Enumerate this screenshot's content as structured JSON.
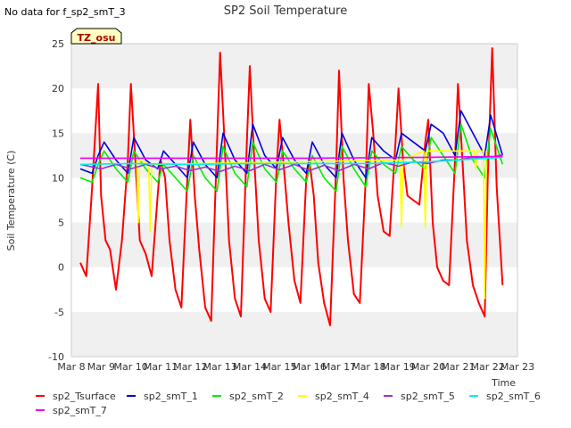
{
  "no_data_note": "No data for f_sp2_smT_3",
  "badge": "TZ_osu",
  "colors": {
    "sp2_Tsurface": "#ff0000",
    "sp2_smT_1": "#0000dd",
    "sp2_smT_2": "#00ee00",
    "sp2_smT_4": "#ffff00",
    "sp2_smT_5": "#9933cc",
    "sp2_smT_6": "#00eeee",
    "sp2_smT_7": "#ee00ee",
    "band": "#f0f0f0",
    "badge_bg": "#ffffc0",
    "badge_text": "#aa0000"
  },
  "chart_data": {
    "type": "line",
    "title": "SP2 Soil Temperature",
    "xlabel": "Time",
    "ylabel": "Soil Temperature (C)",
    "xlim": [
      8,
      23
    ],
    "ylim": [
      -10,
      25
    ],
    "x_tick_values": [
      8,
      9,
      10,
      11,
      12,
      13,
      14,
      15,
      16,
      17,
      18,
      19,
      20,
      21,
      22,
      23
    ],
    "x_tick_labels": [
      "Mar 8",
      "Mar 9",
      "Mar 10",
      "Mar 11",
      "Mar 12",
      "Mar 13",
      "Mar 14",
      "Mar 15",
      "Mar 16",
      "Mar 17",
      "Mar 18",
      "Mar 19",
      "Mar 20",
      "Mar 21",
      "Mar 22",
      "Mar 23"
    ],
    "y_ticks": [
      -10,
      -5,
      0,
      5,
      10,
      15,
      20,
      25
    ],
    "grid": "alternating horizontal bands",
    "legend_position": "bottom",
    "series": [
      {
        "name": "sp2_Tsurface",
        "x": [
          8.3,
          8.5,
          8.7,
          8.9,
          9.0,
          9.15,
          9.3,
          9.5,
          9.7,
          9.9,
          10.0,
          10.15,
          10.3,
          10.5,
          10.7,
          10.9,
          11.0,
          11.15,
          11.3,
          11.5,
          11.7,
          11.9,
          12.0,
          12.15,
          12.3,
          12.5,
          12.7,
          12.9,
          13.0,
          13.15,
          13.3,
          13.5,
          13.7,
          13.9,
          14.0,
          14.15,
          14.3,
          14.5,
          14.7,
          14.9,
          15.0,
          15.15,
          15.3,
          15.5,
          15.7,
          15.9,
          16.0,
          16.15,
          16.3,
          16.5,
          16.7,
          16.9,
          17.0,
          17.15,
          17.3,
          17.5,
          17.7,
          17.9,
          18.0,
          18.15,
          18.3,
          18.5,
          18.7,
          18.9,
          19.0,
          19.15,
          19.3,
          19.5,
          19.7,
          19.9,
          20.0,
          20.15,
          20.3,
          20.5,
          20.7,
          20.9,
          21.0,
          21.15,
          21.3,
          21.5,
          21.7,
          21.9,
          22.0,
          22.15,
          22.3,
          22.5
        ],
        "values": [
          0.5,
          -1.0,
          9.0,
          20.5,
          8.0,
          3.0,
          2.0,
          -2.5,
          3.0,
          12.0,
          20.5,
          12.0,
          3.0,
          1.5,
          -1.0,
          8.0,
          12.0,
          10.0,
          3.0,
          -2.5,
          -4.5,
          10.0,
          16.5,
          8.0,
          2.0,
          -4.5,
          -6.0,
          14.0,
          24.0,
          14.0,
          3.0,
          -3.5,
          -5.5,
          14.0,
          22.5,
          12.0,
          3.0,
          -3.5,
          -5.0,
          11.0,
          16.5,
          11.0,
          5.0,
          -1.5,
          -4.0,
          10.0,
          12.0,
          8.0,
          0.5,
          -4.0,
          -6.5,
          11.0,
          22.0,
          10.0,
          3.0,
          -3.0,
          -4.0,
          10.0,
          20.5,
          15.0,
          8.0,
          4.0,
          3.5,
          14.0,
          20.0,
          12.0,
          8.0,
          7.5,
          7.0,
          14.0,
          16.5,
          5.0,
          0.0,
          -1.5,
          -2.0,
          12.0,
          20.5,
          12.0,
          3.0,
          -2.0,
          -4.0,
          -5.5,
          10.0,
          24.5,
          9.0,
          -2.0
        ]
      },
      {
        "name": "sp2_smT_1",
        "x": [
          8.3,
          8.7,
          8.9,
          9.1,
          9.5,
          9.9,
          10.1,
          10.5,
          10.9,
          11.1,
          11.5,
          11.9,
          12.1,
          12.5,
          12.9,
          13.1,
          13.5,
          13.9,
          14.1,
          14.5,
          14.9,
          15.1,
          15.5,
          15.9,
          16.1,
          16.5,
          16.9,
          17.1,
          17.5,
          17.9,
          18.1,
          18.5,
          18.9,
          19.1,
          19.5,
          19.9,
          20.1,
          20.5,
          20.9,
          21.1,
          21.5,
          21.9,
          22.1,
          22.5
        ],
        "values": [
          11.0,
          10.5,
          12.5,
          14.0,
          12.0,
          10.5,
          14.5,
          12.0,
          11.0,
          13.0,
          11.5,
          10.0,
          14.0,
          11.5,
          10.0,
          15.0,
          12.0,
          10.5,
          16.0,
          12.5,
          11.0,
          14.5,
          12.0,
          10.5,
          14.0,
          11.5,
          10.0,
          15.0,
          12.0,
          10.0,
          14.5,
          13.0,
          12.0,
          15.0,
          14.0,
          13.0,
          16.0,
          15.0,
          12.5,
          17.5,
          15.0,
          12.5,
          17.0,
          12.5
        ]
      },
      {
        "name": "sp2_smT_2",
        "x": [
          8.3,
          8.7,
          8.9,
          9.1,
          9.5,
          9.9,
          10.1,
          10.5,
          10.9,
          11.1,
          11.5,
          11.9,
          12.1,
          12.5,
          12.9,
          13.1,
          13.5,
          13.9,
          14.1,
          14.5,
          14.9,
          15.1,
          15.5,
          15.9,
          16.1,
          16.5,
          16.9,
          17.1,
          17.5,
          17.9,
          18.1,
          18.5,
          18.9,
          19.1,
          19.5,
          19.9,
          20.1,
          20.5,
          20.9,
          21.1,
          21.5,
          21.9,
          22.1,
          22.5
        ],
        "values": [
          10.0,
          9.5,
          11.5,
          13.0,
          11.0,
          9.5,
          13.0,
          11.0,
          9.5,
          11.5,
          10.0,
          8.5,
          12.5,
          10.0,
          8.5,
          13.5,
          10.5,
          9.0,
          14.0,
          11.0,
          9.5,
          13.0,
          11.0,
          9.5,
          12.5,
          10.0,
          8.5,
          13.5,
          11.0,
          9.0,
          13.0,
          11.5,
          10.5,
          13.5,
          12.0,
          11.0,
          14.5,
          12.5,
          10.5,
          16.0,
          12.0,
          10.0,
          15.5,
          11.5
        ]
      },
      {
        "name": "sp2_smT_4",
        "x": [
          10.2,
          10.25,
          10.3,
          10.6,
          10.65,
          10.7,
          19.05,
          19.1,
          19.15,
          19.85,
          19.9,
          19.95,
          21.55,
          21.6,
          21.65,
          21.85,
          21.9,
          21.95
        ],
        "values": [
          12.0,
          5.0,
          12.0,
          11.5,
          4.0,
          11.5,
          12.0,
          4.5,
          12.0,
          13.0,
          4.5,
          13.0,
          13.0,
          11.0,
          13.0,
          13.0,
          -3.5,
          13.0
        ]
      },
      {
        "name": "sp2_smT_5",
        "x": [
          8.3,
          9.0,
          9.5,
          10.0,
          10.5,
          11.0,
          11.5,
          12.0,
          12.5,
          13.0,
          13.5,
          14.0,
          14.5,
          15.0,
          15.5,
          16.0,
          16.5,
          17.0,
          17.5,
          18.0,
          18.5,
          19.0,
          19.5,
          20.0,
          20.5,
          21.0,
          21.5,
          22.0,
          22.5
        ],
        "values": [
          11.5,
          11.0,
          11.5,
          11.0,
          11.5,
          11.0,
          11.3,
          10.8,
          11.2,
          10.7,
          11.3,
          10.8,
          11.5,
          10.9,
          11.5,
          10.8,
          11.4,
          10.8,
          11.5,
          11.0,
          11.7,
          11.3,
          11.8,
          11.6,
          12.0,
          12.0,
          12.3,
          12.2,
          12.6
        ]
      },
      {
        "name": "sp2_smT_6",
        "x": [
          8.3,
          10.0,
          12.0,
          14.0,
          16.0,
          18.0,
          20.0,
          21.0,
          22.0,
          22.5
        ],
        "values": [
          11.5,
          11.6,
          11.5,
          11.6,
          11.6,
          11.6,
          11.8,
          12.0,
          12.2,
          12.3
        ]
      },
      {
        "name": "sp2_smT_7",
        "x": [
          8.3,
          12.0,
          16.0,
          20.0,
          22.5
        ],
        "values": [
          12.2,
          12.2,
          12.2,
          12.3,
          12.4
        ]
      }
    ]
  }
}
